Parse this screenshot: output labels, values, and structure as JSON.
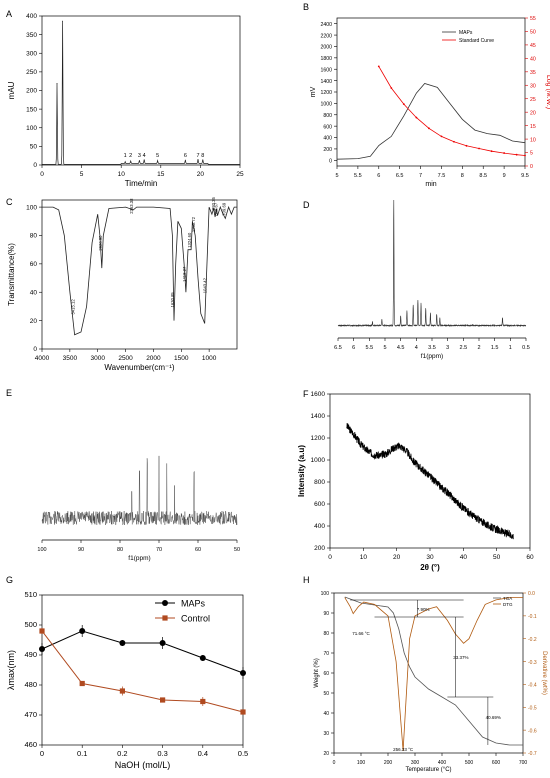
{
  "chart_data": [
    {
      "panel": "A",
      "type": "line",
      "ylabel": "mAU",
      "xlabel": "Time/min",
      "xlim": [
        0,
        25
      ],
      "ylim": [
        0,
        400
      ],
      "x_ticks": [
        0,
        5,
        10,
        15,
        20,
        25
      ],
      "y_ticks": [
        0,
        50,
        100,
        150,
        200,
        250,
        300,
        350,
        400
      ],
      "peaks": [
        {
          "x": 1.9,
          "y": 218
        },
        {
          "x": 2.6,
          "y": 385
        },
        {
          "x": 10.5,
          "y": 5
        },
        {
          "x": 11.2,
          "y": 7
        },
        {
          "x": 12.3,
          "y": 9
        },
        {
          "x": 12.9,
          "y": 11
        },
        {
          "x": 14.6,
          "y": 8
        },
        {
          "x": 18.1,
          "y": 10
        },
        {
          "x": 19.7,
          "y": 12
        },
        {
          "x": 20.3,
          "y": 11
        }
      ],
      "peak_labels": [
        "1",
        "2",
        "3",
        "4",
        "5",
        "6",
        "7",
        "8"
      ]
    },
    {
      "panel": "B",
      "type": "line",
      "ylabel": "mV",
      "y2label": "Log (M.W.)",
      "xlabel": "min",
      "xlim": [
        5.0,
        9.5
      ],
      "ylim": [
        -100,
        2500
      ],
      "y2lim": [
        0,
        55
      ],
      "x_ticks": [
        5.0,
        5.5,
        6.0,
        6.5,
        7.0,
        7.5,
        8.0,
        8.5,
        9.0,
        9.5
      ],
      "y_ticks": [
        0,
        200,
        400,
        600,
        800,
        1000,
        1200,
        1400,
        1600,
        1800,
        2000,
        2200,
        2400
      ],
      "y2_ticks": [
        0,
        5,
        10,
        15,
        20,
        25,
        30,
        35,
        40,
        45,
        50,
        55
      ],
      "series": [
        {
          "name": "MAPs",
          "x": [
            5.0,
            5.5,
            5.8,
            6.0,
            6.3,
            6.6,
            6.9,
            7.1,
            7.4,
            7.7,
            8.0,
            8.3,
            8.6,
            8.9,
            9.2,
            9.5
          ],
          "y": [
            20,
            30,
            70,
            260,
            420,
            780,
            1180,
            1350,
            1280,
            1000,
            720,
            530,
            470,
            440,
            340,
            310
          ]
        },
        {
          "name": "Standard Curve",
          "x": [
            6.0,
            6.3,
            6.6,
            6.9,
            7.2,
            7.5,
            7.8,
            8.1,
            8.4,
            8.7,
            9.0,
            9.3,
            9.5
          ],
          "y": [
            37,
            29,
            23,
            18,
            14,
            11,
            9,
            7.5,
            6.5,
            5.5,
            4.8,
            4.2,
            3.9
          ]
        }
      ]
    },
    {
      "panel": "C",
      "type": "line",
      "ylabel": "Transmittance(%)",
      "xlabel": "Wavenumber(cm⁻¹)",
      "xlim": [
        4000,
        500
      ],
      "ylim": [
        0,
        100
      ],
      "x_ticks": [
        4000,
        3500,
        3000,
        2500,
        2000,
        1500,
        1000
      ],
      "y_ticks": [
        0,
        20,
        40,
        60,
        80,
        100
      ],
      "x": [
        4000,
        3800,
        3700,
        3600,
        3500,
        3415,
        3300,
        3200,
        3100,
        3000,
        2960,
        2926,
        2900,
        2800,
        2500,
        2363,
        2300,
        2000,
        1700,
        1660,
        1630,
        1600,
        1560,
        1500,
        1450,
        1418,
        1380,
        1324,
        1300,
        1250,
        1200,
        1150,
        1080,
        1030,
        1000,
        950,
        920,
        893,
        870,
        850,
        800,
        760,
        710,
        650,
        600,
        550,
        500
      ],
      "y": [
        100,
        100,
        98,
        80,
        40,
        10,
        12,
        30,
        75,
        95,
        80,
        57,
        80,
        99,
        100,
        98,
        100,
        100,
        99,
        80,
        20,
        60,
        90,
        85,
        60,
        40,
        70,
        70,
        90,
        80,
        50,
        25,
        18,
        70,
        100,
        95,
        99,
        93,
        99,
        94,
        100,
        96,
        92,
        100,
        95,
        100,
        100
      ],
      "labels": [
        "3415.12",
        "2926.90",
        "2363.38",
        "1630.85",
        "1418.27",
        "1324.60",
        "1250.72",
        "1043.42",
        "893.35",
        "849.67",
        "709.69"
      ]
    },
    {
      "panel": "D",
      "type": "line",
      "xlabel": "f1(ppm)",
      "xlim": [
        6.5,
        0.5
      ],
      "x_ticks": [
        6.5,
        6.0,
        5.5,
        5.0,
        4.5,
        4.0,
        3.5,
        3.0,
        2.5,
        2.0,
        1.5,
        1.0,
        0.5
      ],
      "peaks": [
        {
          "x": 5.4,
          "y": 3
        },
        {
          "x": 5.1,
          "y": 5
        },
        {
          "x": 4.72,
          "y": 100
        },
        {
          "x": 4.5,
          "y": 8
        },
        {
          "x": 4.3,
          "y": 12
        },
        {
          "x": 4.1,
          "y": 16
        },
        {
          "x": 3.95,
          "y": 20
        },
        {
          "x": 3.85,
          "y": 18
        },
        {
          "x": 3.7,
          "y": 14
        },
        {
          "x": 3.55,
          "y": 10
        },
        {
          "x": 3.35,
          "y": 9
        },
        {
          "x": 3.25,
          "y": 6
        },
        {
          "x": 1.25,
          "y": 6
        }
      ]
    },
    {
      "panel": "E",
      "type": "line",
      "xlabel": "f1(ppm)",
      "xlim": [
        100,
        50
      ],
      "x_ticks": [
        100,
        90,
        80,
        70,
        60,
        50
      ],
      "peaks": [
        {
          "x": 77,
          "y": 30
        },
        {
          "x": 75,
          "y": 45
        },
        {
          "x": 73,
          "y": 55
        },
        {
          "x": 70,
          "y": 60
        },
        {
          "x": 68,
          "y": 50
        },
        {
          "x": 66,
          "y": 35
        },
        {
          "x": 61,
          "y": 40
        }
      ]
    },
    {
      "panel": "F",
      "type": "line",
      "ylabel": "Intensity (a.u)",
      "xlabel": "2θ (°)",
      "xlim": [
        0,
        60
      ],
      "ylim": [
        200,
        1600
      ],
      "x_ticks": [
        0,
        10,
        20,
        30,
        40,
        50,
        60
      ],
      "y_ticks": [
        200,
        400,
        600,
        800,
        1000,
        1200,
        1400,
        1600
      ],
      "x": [
        5,
        7,
        9,
        11,
        13,
        15,
        17,
        19,
        21,
        23,
        25,
        27,
        29,
        31,
        33,
        35,
        37,
        39,
        41,
        43,
        45,
        47,
        49,
        51,
        53,
        55
      ],
      "y": [
        1310,
        1240,
        1150,
        1090,
        1050,
        1040,
        1060,
        1110,
        1130,
        1080,
        990,
        930,
        880,
        820,
        760,
        710,
        650,
        590,
        540,
        490,
        450,
        410,
        380,
        355,
        330,
        310
      ]
    },
    {
      "panel": "G",
      "type": "line",
      "ylabel": "λmax(nm)",
      "xlabel": "NaOH (mol/L)",
      "xlim": [
        0.0,
        0.5
      ],
      "ylim": [
        460,
        510
      ],
      "x_ticks": [
        0.0,
        0.1,
        0.2,
        0.3,
        0.4,
        0.5
      ],
      "y_ticks": [
        460,
        470,
        480,
        490,
        500,
        510
      ],
      "x": [
        0.0,
        0.1,
        0.2,
        0.3,
        0.4,
        0.5
      ],
      "series": [
        {
          "name": "MAPs",
          "values": [
            492,
            498,
            494,
            494,
            489,
            484
          ],
          "err": [
            2,
            2,
            1,
            2,
            1,
            2
          ]
        },
        {
          "name": "Control",
          "values": [
            498,
            480.5,
            478,
            475,
            474.5,
            471
          ],
          "err": [
            1,
            0.5,
            1.5,
            0.5,
            1.5,
            0.5
          ]
        }
      ]
    },
    {
      "panel": "H",
      "type": "line",
      "ylabel": "Weight (%)",
      "y2label": "Derivative (wt%)",
      "xlabel": "Temperature (°C)",
      "xlim": [
        0,
        700
      ],
      "ylim": [
        20,
        100
      ],
      "y2lim": [
        -0.7,
        0
      ],
      "x_ticks": [
        0,
        100,
        200,
        300,
        400,
        500,
        600,
        700
      ],
      "y_ticks": [
        20,
        30,
        40,
        50,
        60,
        70,
        80,
        90,
        100
      ],
      "y2_ticks": [
        0.0,
        -0.1,
        -0.2,
        -0.3,
        -0.4,
        -0.5,
        -0.6,
        -0.7
      ],
      "y2_tick_labels": [
        "0.0",
        "-0.1",
        "-0.2",
        "-0.3",
        "-0.4",
        "-0.5",
        "-0.6",
        "-0.7"
      ],
      "series": [
        {
          "name": "TGA",
          "x": [
            40,
            60,
            80,
            100,
            150,
            200,
            220,
            240,
            260,
            280,
            300,
            350,
            400,
            450,
            500,
            550,
            600,
            650,
            700
          ],
          "y": [
            98,
            97,
            96,
            95,
            94,
            93,
            90,
            82,
            70,
            63,
            58,
            52,
            48,
            44,
            36,
            28,
            25,
            24,
            24
          ]
        },
        {
          "name": "DTG",
          "x": [
            40,
            60,
            71,
            90,
            110,
            150,
            200,
            230,
            250,
            256,
            265,
            280,
            300,
            350,
            380,
            420,
            450,
            480,
            500,
            530,
            560,
            600,
            650,
            700
          ],
          "y": [
            -0.02,
            -0.06,
            -0.09,
            -0.06,
            -0.04,
            -0.05,
            -0.1,
            -0.3,
            -0.6,
            -0.69,
            -0.5,
            -0.2,
            -0.1,
            -0.07,
            -0.06,
            -0.12,
            -0.18,
            -0.22,
            -0.2,
            -0.12,
            -0.05,
            -0.03,
            -0.02,
            -0.02
          ]
        }
      ],
      "annotations": [
        "71.66 °C",
        "256.33 °C",
        "7.90%",
        "33.37%",
        "40.69%"
      ]
    }
  ],
  "panel_labels": [
    "A",
    "B",
    "C",
    "D",
    "E",
    "F",
    "G",
    "H"
  ]
}
